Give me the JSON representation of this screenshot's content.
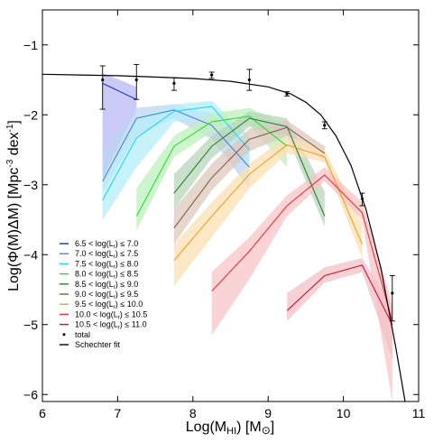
{
  "chart_data": {
    "type": "line",
    "xlabel": "Log(M_HI) [M_⊙]",
    "ylabel": "Log(Φ(M)ΔM) [Mpc-3 dex-1]",
    "xlim": [
      6,
      11
    ],
    "ylim": [
      -6.1,
      -0.5
    ],
    "xticks": [
      6,
      7,
      8,
      9,
      10,
      11
    ],
    "yticks": [
      -6,
      -5,
      -4,
      -3,
      -2,
      -1
    ],
    "legend_position": "lower-left",
    "series": [
      {
        "name": "6.5 < log(L_r) ≤ 7.0",
        "color": "#2030d0",
        "band_color": "#b8b8f4",
        "x": [
          6.8,
          7.25
        ],
        "y": [
          -1.55,
          -1.78
        ],
        "lo": [
          -2.9,
          -1.93
        ],
        "hi": [
          -1.4,
          -1.6
        ]
      },
      {
        "name": "7.0 < log(L_r) ≤ 7.5",
        "color": "#4a82d8",
        "band_color": "#bcd4f2",
        "x": [
          6.8,
          7.25,
          7.75,
          8.25,
          8.75
        ],
        "y": [
          -2.95,
          -2.05,
          -1.93,
          -2.15,
          -2.75
        ],
        "lo": [
          -3.1,
          -2.3,
          -2.05,
          -2.35,
          -3.05
        ],
        "hi": [
          -2.55,
          -1.9,
          -1.85,
          -1.98,
          -2.45
        ]
      },
      {
        "name": "7.5 < log(L_r) ≤ 8.0",
        "color": "#28d4f0",
        "band_color": "#b4eef8",
        "x": [
          6.8,
          7.25,
          7.75,
          8.25,
          8.75
        ],
        "y": [
          -3.22,
          -2.33,
          -1.95,
          -1.88,
          -2.5
        ],
        "lo": [
          -3.5,
          -2.75,
          -2.1,
          -2.0,
          -2.8
        ],
        "hi": [
          -2.95,
          -2.05,
          -1.85,
          -1.8,
          -2.3
        ]
      },
      {
        "name": "8.0 < log(L_r) ≤ 8.5",
        "color": "#30d830",
        "band_color": "#bdf0bd",
        "x": [
          7.25,
          7.75,
          8.25,
          8.75,
          9.25
        ],
        "y": [
          -3.45,
          -2.45,
          -2.1,
          -2.02,
          -2.45
        ],
        "lo": [
          -3.65,
          -2.6,
          -2.25,
          -2.15,
          -2.75
        ],
        "hi": [
          -3.05,
          -2.3,
          -1.98,
          -1.9,
          -2.15
        ]
      },
      {
        "name": "8.5 < log(L_r) ≤ 9.0",
        "color": "#2f7d3a",
        "band_color": "#b7d6b9",
        "x": [
          7.75,
          8.25,
          8.75,
          9.25,
          9.75
        ],
        "y": [
          -3.12,
          -2.45,
          -2.05,
          -2.17,
          -3.45
        ],
        "lo": [
          -3.35,
          -2.62,
          -2.17,
          -2.3,
          -3.6
        ],
        "hi": [
          -2.85,
          -2.3,
          -1.95,
          -2.05,
          -3.1
        ]
      },
      {
        "name": "9.0 < log(L_r) ≤ 9.5",
        "color": "#8b5a45",
        "band_color": "#dcc8be",
        "x": [
          7.75,
          8.25,
          8.75,
          9.25,
          9.75
        ],
        "y": [
          -3.62,
          -2.9,
          -2.35,
          -2.18,
          -2.55
        ],
        "lo": [
          -3.85,
          -3.08,
          -2.52,
          -2.3,
          -2.65
        ],
        "hi": [
          -3.35,
          -2.7,
          -2.2,
          -2.08,
          -2.45
        ]
      },
      {
        "name": "9.5 < log(L_r) ≤ 10.0",
        "color": "#f0a020",
        "band_color": "#fbe0b4",
        "x": [
          7.75,
          8.25,
          8.75,
          9.25,
          9.75,
          10.25
        ],
        "y": [
          -4.08,
          -3.45,
          -2.85,
          -2.43,
          -2.6,
          -3.85
        ],
        "lo": [
          -4.45,
          -3.75,
          -3.05,
          -2.55,
          -2.68,
          -4.05
        ],
        "hi": [
          -3.85,
          -3.25,
          -2.7,
          -2.3,
          -2.5,
          -3.55
        ]
      },
      {
        "name": "10.0 < log(L_r) ≤ 10.5",
        "color": "#e8343a",
        "band_color": "#f8c4c6",
        "x": [
          8.25,
          8.75,
          9.25,
          9.75,
          10.25,
          10.65
        ],
        "y": [
          -4.52,
          -3.95,
          -3.3,
          -2.86,
          -3.4,
          -4.95
        ],
        "lo": [
          -5.15,
          -4.35,
          -3.45,
          -2.95,
          -3.5,
          -6.1
        ],
        "hi": [
          -4.25,
          -3.75,
          -3.15,
          -2.75,
          -3.25,
          -4.7
        ]
      },
      {
        "name": "10.5 < log(L_r) ≤ 11.0",
        "color": "#c8142c",
        "band_color": "#f2c2c8",
        "x": [
          9.25,
          9.75,
          10.25,
          10.65
        ],
        "y": [
          -4.8,
          -4.3,
          -4.15,
          -5.0
        ],
        "lo": [
          -4.95,
          -4.4,
          -4.25,
          -5.5
        ],
        "hi": [
          -4.55,
          -4.18,
          -4.05,
          -4.75
        ]
      }
    ],
    "total": {
      "name": "total",
      "color": "#000000",
      "x": [
        6.8,
        7.25,
        7.75,
        8.25,
        8.75,
        9.25,
        9.75,
        10.25,
        10.65
      ],
      "y": [
        -1.5,
        -1.5,
        -1.55,
        -1.43,
        -1.5,
        -1.7,
        -2.15,
        -3.2,
        -4.55
      ],
      "err_lo": [
        0.42,
        0.28,
        0.1,
        0.05,
        0.15,
        0.03,
        0.05,
        0.1,
        0.4
      ],
      "err_hi": [
        0.2,
        0.22,
        0.08,
        0.04,
        0.15,
        0.03,
        0.05,
        0.08,
        0.25
      ]
    },
    "schechter": {
      "name": "Schechter fit",
      "color": "#000000",
      "x": [
        6.0,
        6.5,
        7.0,
        7.5,
        8.0,
        8.5,
        9.0,
        9.3,
        9.5,
        9.7,
        9.9,
        10.1,
        10.3,
        10.5,
        10.7,
        10.82
      ],
      "y": [
        -1.42,
        -1.43,
        -1.44,
        -1.46,
        -1.48,
        -1.52,
        -1.6,
        -1.7,
        -1.82,
        -2.0,
        -2.3,
        -2.72,
        -3.35,
        -4.2,
        -5.35,
        -6.1
      ]
    }
  }
}
